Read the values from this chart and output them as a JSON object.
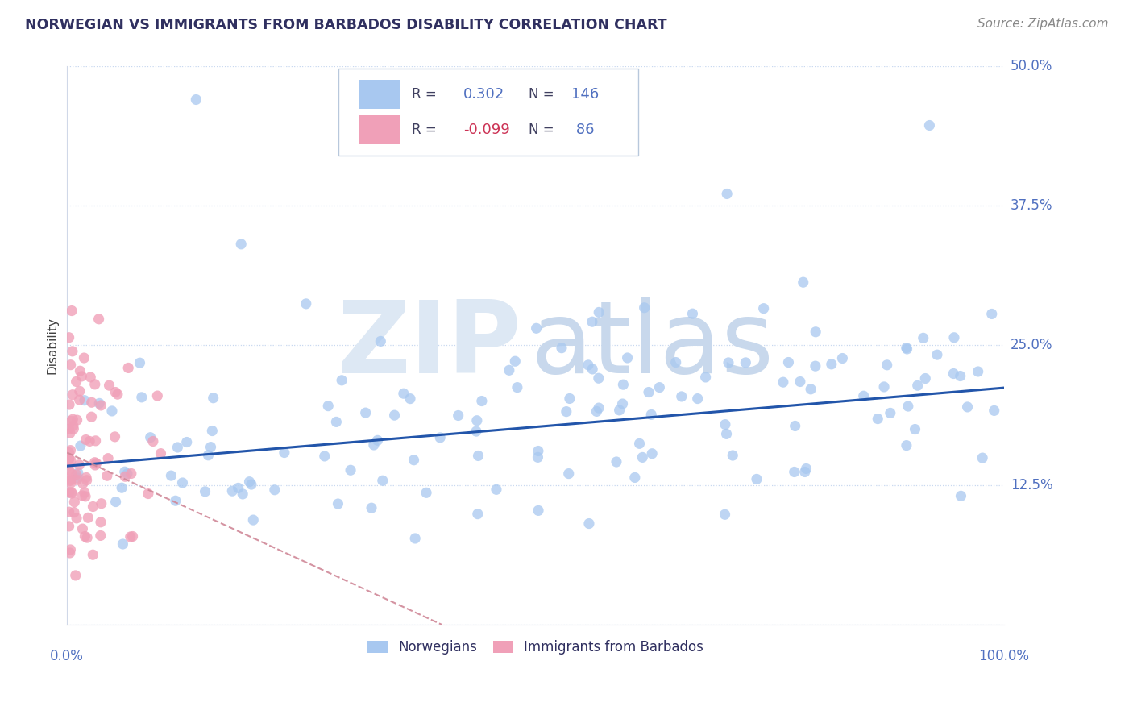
{
  "title": "NORWEGIAN VS IMMIGRANTS FROM BARBADOS DISABILITY CORRELATION CHART",
  "source": "Source: ZipAtlas.com",
  "ylabel": "Disability",
  "xlim": [
    0.0,
    1.0
  ],
  "ylim": [
    0.0,
    0.5
  ],
  "yticks": [
    0.0,
    0.125,
    0.25,
    0.375,
    0.5
  ],
  "ytick_labels": [
    "",
    "12.5%",
    "25.0%",
    "37.5%",
    "50.0%"
  ],
  "legend_entries": [
    "Norwegians",
    "Immigrants from Barbados"
  ],
  "r1": 0.302,
  "n1": 146,
  "r2": -0.099,
  "n2": 86,
  "blue_color": "#a8c8f0",
  "blue_line_color": "#2255aa",
  "pink_color": "#f0a0b8",
  "pink_line_color": "#d08898",
  "grid_color": "#c8d8f0",
  "title_color": "#303060",
  "axis_label_color": "#404040",
  "tick_color": "#5070c0",
  "watermark_zip_color": "#dde8f4",
  "watermark_atlas_color": "#c8d8ec",
  "background_color": "#ffffff",
  "seed": 1234
}
